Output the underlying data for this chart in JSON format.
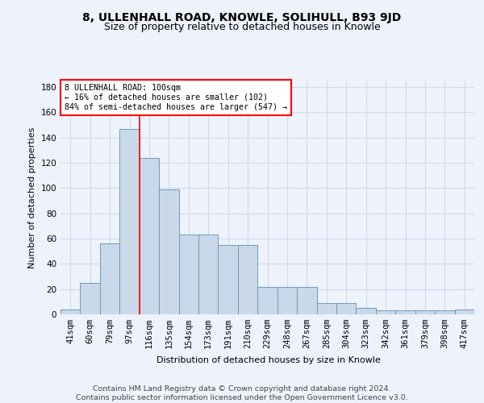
{
  "title1": "8, ULLENHALL ROAD, KNOWLE, SOLIHULL, B93 9JD",
  "title2": "Size of property relative to detached houses in Knowle",
  "xlabel": "Distribution of detached houses by size in Knowle",
  "ylabel": "Number of detached properties",
  "categories": [
    "41sqm",
    "60sqm",
    "79sqm",
    "97sqm",
    "116sqm",
    "135sqm",
    "154sqm",
    "173sqm",
    "191sqm",
    "210sqm",
    "229sqm",
    "248sqm",
    "267sqm",
    "285sqm",
    "304sqm",
    "323sqm",
    "342sqm",
    "361sqm",
    "379sqm",
    "398sqm",
    "417sqm"
  ],
  "values": [
    4,
    25,
    56,
    147,
    124,
    99,
    63,
    63,
    55,
    55,
    22,
    22,
    22,
    9,
    9,
    5,
    3,
    3,
    3,
    3,
    4
  ],
  "bar_color": "#c9d9ea",
  "bar_edge_color": "#6a9cb8",
  "bar_edge_width": 0.7,
  "red_line_index": 3,
  "ylim": [
    0,
    185
  ],
  "yticks": [
    0,
    20,
    40,
    60,
    80,
    100,
    120,
    140,
    160,
    180
  ],
  "annotation_text_line1": "8 ULLENHALL ROAD: 100sqm",
  "annotation_text_line2": "← 16% of detached houses are smaller (102)",
  "annotation_text_line3": "84% of semi-detached houses are larger (547) →",
  "footnote": "Contains HM Land Registry data © Crown copyright and database right 2024.\nContains public sector information licensed under the Open Government Licence v3.0.",
  "bg_color": "#eef2fb",
  "plot_bg_color": "#eef2fb",
  "grid_color": "#d0d8ee",
  "title1_fontsize": 10,
  "title2_fontsize": 9,
  "axis_label_fontsize": 8,
  "tick_fontsize": 7.5,
  "footnote_fontsize": 6.8
}
